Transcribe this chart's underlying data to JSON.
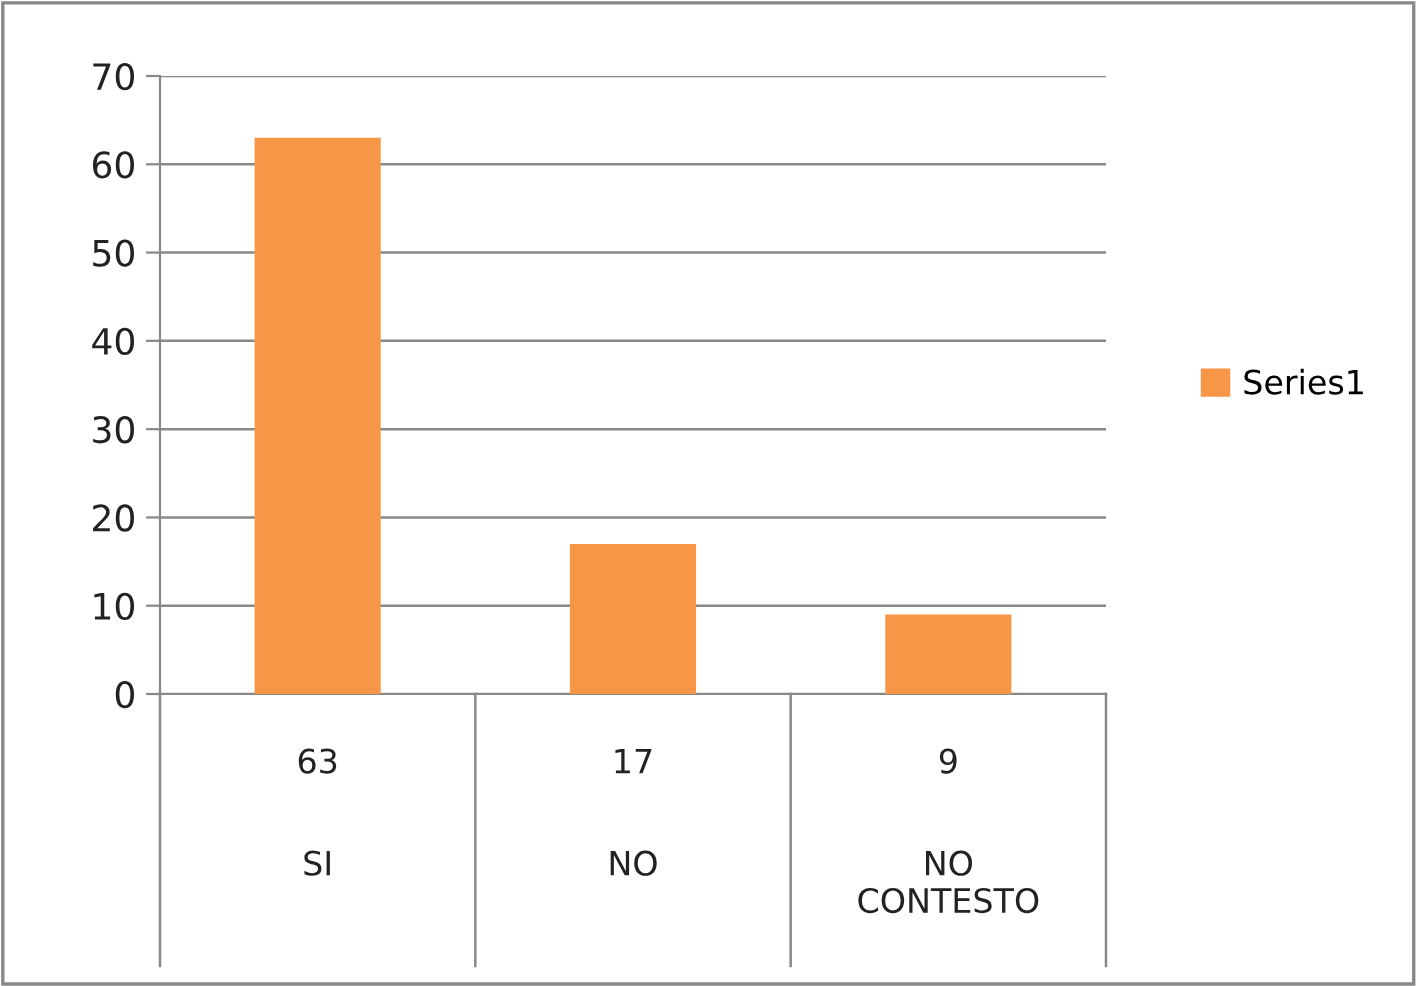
{
  "chart_data": {
    "type": "bar",
    "categories": [
      "SI",
      "NO",
      "NO CONTESTO"
    ],
    "series": [
      {
        "name": "Series1",
        "color": "#f79646",
        "values": [
          63,
          17,
          9
        ]
      }
    ],
    "ylim": [
      0,
      70
    ],
    "yticks": [
      0,
      10,
      20,
      30,
      40,
      50,
      60,
      70
    ],
    "grid": "y",
    "legend": "right",
    "data_labels": true
  }
}
